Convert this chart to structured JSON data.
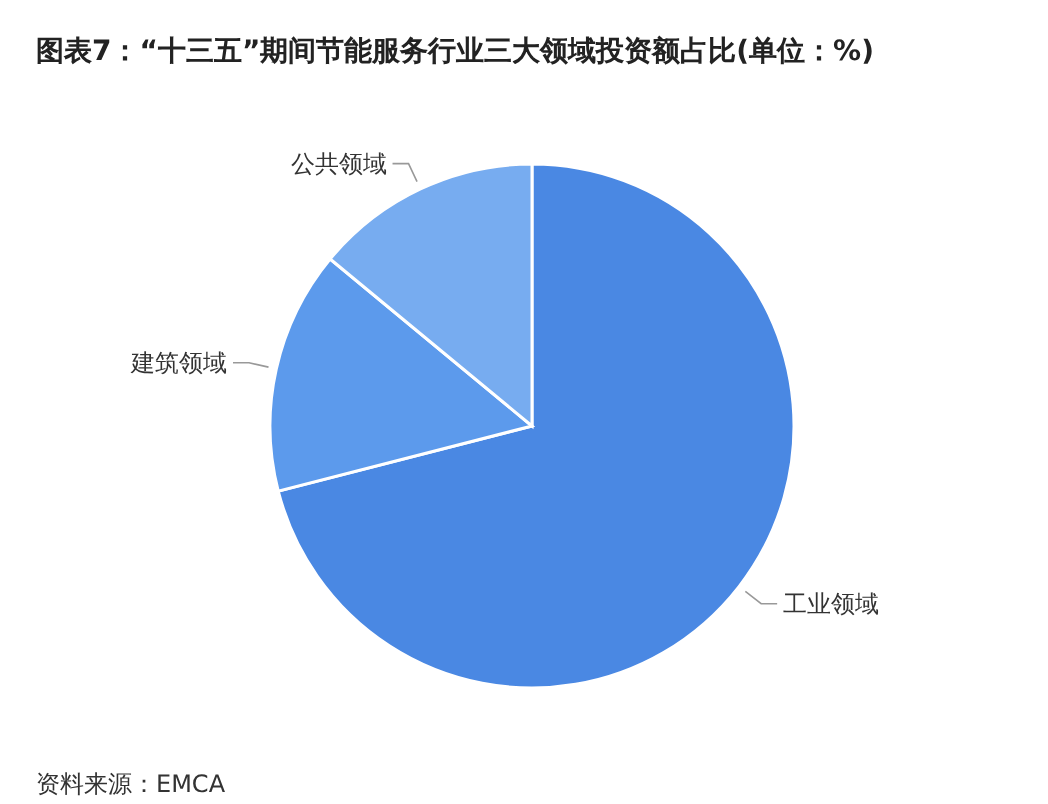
{
  "chart_data": {
    "type": "pie",
    "title": "图表7：“十三五”期间节能服务行业三大领域投资额占比(单位：%)",
    "categories": [
      "工业领域",
      "建筑领域",
      "公共领域"
    ],
    "values": [
      71,
      15,
      14
    ],
    "colors": [
      "#4a88e3",
      "#5c9aec",
      "#77acf0"
    ],
    "legend": false,
    "annotations": [
      "资料来源：EMCA"
    ]
  }
}
